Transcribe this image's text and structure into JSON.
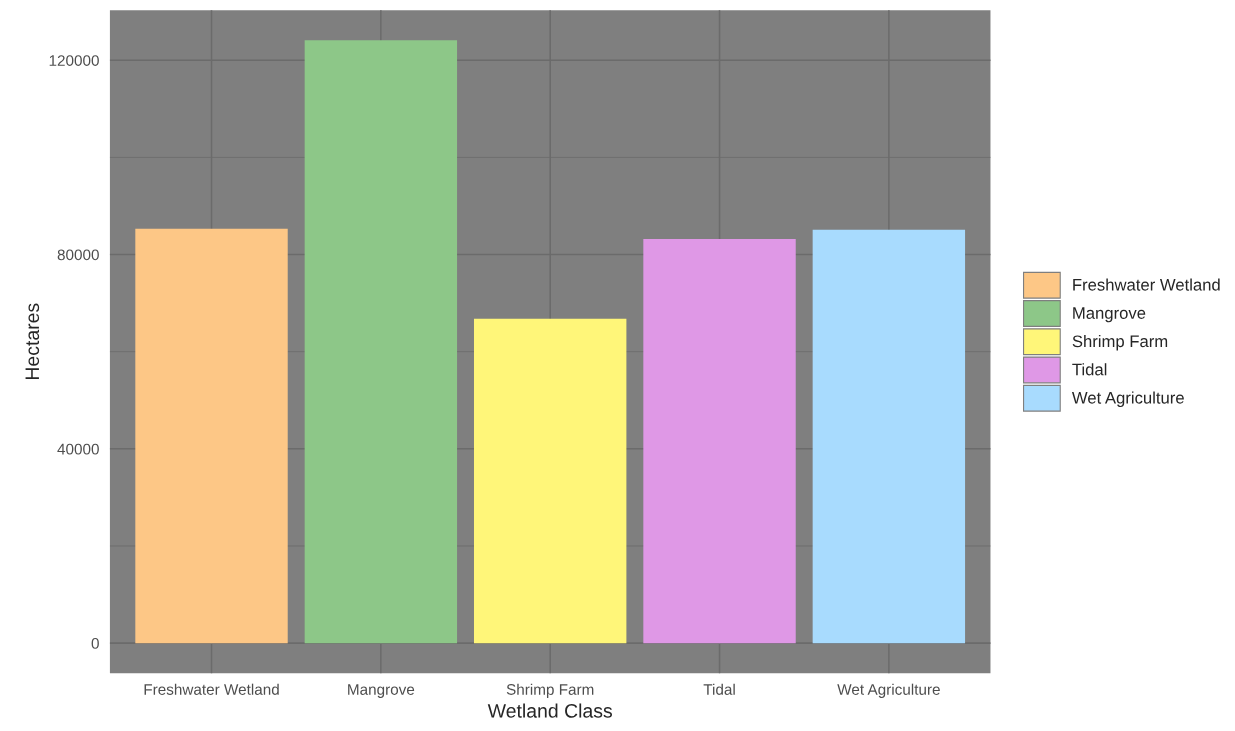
{
  "chart_data": {
    "type": "bar",
    "xlabel": "Wetland Class",
    "ylabel": "Hectares",
    "categories": [
      "Freshwater Wetland",
      "Mangrove",
      "Shrimp Farm",
      "Tidal",
      "Wet Agriculture"
    ],
    "series": [
      {
        "name": "Freshwater Wetland",
        "color": "#fdc786",
        "values": [
          85300,
          null,
          null,
          null,
          null
        ]
      },
      {
        "name": "Mangrove",
        "color": "#8dc788",
        "values": [
          null,
          124100,
          null,
          null,
          null
        ]
      },
      {
        "name": "Shrimp Farm",
        "color": "#fff679",
        "values": [
          null,
          null,
          66800,
          null,
          null
        ]
      },
      {
        "name": "Tidal",
        "color": "#df98e6",
        "values": [
          null,
          null,
          null,
          83200,
          null
        ]
      },
      {
        "name": "Wet Agriculture",
        "color": "#a8dbfe",
        "values": [
          null,
          null,
          null,
          null,
          85100
        ]
      }
    ],
    "ylim": [
      -6200,
      130300
    ],
    "yticks": [
      0,
      40000,
      80000,
      120000
    ],
    "grid": true,
    "legend": "right"
  }
}
